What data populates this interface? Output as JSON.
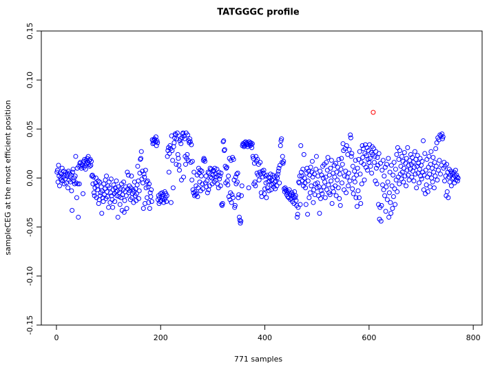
{
  "chart_data": {
    "type": "scatter",
    "title": "TATGGGC profile",
    "x_label": "771 samples",
    "y_label": "sampleCEG at the most efficient position",
    "xlim": [
      -29,
      817
    ],
    "xticks": [
      0,
      200,
      400,
      600,
      800
    ],
    "ylim": [
      -0.15,
      0.15
    ],
    "yticks": [
      -0.15,
      {
        "value": -0.1,
        "label": "-0.10"
      },
      -0.05,
      {
        "value": 0,
        "label": "0.00"
      },
      0.05,
      {
        "value": 0.1,
        "label": "0.10"
      },
      0.15
    ],
    "series": [
      {
        "color": "#0000ff",
        "values": [
          0.006,
          0.008,
          -0.004,
          0.013,
          0.002,
          -0.008,
          0.005,
          0.0,
          -0.002,
          0.004,
          0.01,
          -0.003,
          0.001,
          0.007,
          -0.006,
          0.003,
          -0.001,
          0.006,
          -0.005,
          0.002,
          0.004,
          -0.01,
          0.007,
          -0.002,
          0.005,
          0.001,
          -0.004,
          0.003,
          -0.013,
          -0.033,
          0.006,
          0.009,
          -0.003,
          0.0,
          -0.006,
          0.002,
          0.022,
          -0.005,
          -0.02,
          0.01,
          -0.006,
          -0.04,
          0.012,
          -0.006,
          0.015,
          0.016,
          0.012,
          0.01,
          0.014,
          0.013,
          -0.016,
          0.017,
          0.011,
          0.019,
          0.013,
          0.009,
          0.018,
          0.015,
          0.02,
          0.016,
          0.022,
          0.014,
          0.018,
          0.012,
          0.019,
          0.013,
          0.017,
          0.002,
          0.003,
          -0.006,
          0.001,
          -0.015,
          -0.018,
          -0.01,
          -0.005,
          0.0,
          -0.02,
          -0.008,
          -0.012,
          -0.003,
          -0.026,
          -0.022,
          -0.004,
          -0.018,
          -0.015,
          -0.009,
          -0.036,
          -0.013,
          -0.02,
          -0.024,
          -0.006,
          -0.017,
          -0.011,
          -0.002,
          -0.021,
          0.002,
          -0.014,
          -0.019,
          -0.008,
          -0.03,
          -0.004,
          -0.01,
          -0.025,
          -0.015,
          -0.001,
          -0.018,
          -0.022,
          -0.03,
          -0.012,
          -0.007,
          -0.016,
          -0.024,
          -0.01,
          -0.014,
          -0.003,
          -0.018,
          -0.013,
          -0.04,
          -0.009,
          -0.019,
          -0.015,
          -0.027,
          -0.011,
          -0.02,
          -0.006,
          -0.033,
          -0.017,
          -0.012,
          -0.004,
          -0.035,
          -0.023,
          -0.014,
          -0.009,
          -0.018,
          -0.031,
          0.006,
          -0.011,
          0.003,
          -0.015,
          -0.008,
          -0.013,
          -0.022,
          -0.01,
          0.002,
          -0.02,
          -0.016,
          -0.012,
          -0.025,
          -0.014,
          -0.004,
          -0.018,
          -0.011,
          -0.023,
          -0.016,
          -0.007,
          0.012,
          -0.003,
          -0.021,
          -0.013,
          0.005,
          0.019,
          0.02,
          0.027,
          -0.001,
          0.007,
          -0.005,
          -0.031,
          0.004,
          0.001,
          -0.026,
          0.008,
          -0.01,
          -0.004,
          -0.02,
          -0.003,
          -0.009,
          -0.025,
          -0.006,
          -0.031,
          -0.015,
          -0.019,
          -0.012,
          -0.024,
          0.039,
          0.035,
          0.038,
          0.036,
          0.04,
          0.039,
          0.037,
          0.042,
          0.033,
          0.038,
          0.036,
          -0.022,
          -0.018,
          -0.026,
          -0.02,
          -0.024,
          -0.016,
          -0.023,
          -0.019,
          -0.015,
          -0.021,
          -0.017,
          -0.025,
          -0.022,
          -0.014,
          -0.02,
          -0.016,
          -0.024,
          -0.018,
          0.022,
          0.028,
          0.031,
          0.006,
          0.025,
          0.033,
          0.03,
          -0.025,
          0.043,
          0.028,
          0.018,
          -0.01,
          0.032,
          0.036,
          0.041,
          0.045,
          0.044,
          0.014,
          0.04,
          0.046,
          0.024,
          0.02,
          0.013,
          0.008,
          0.038,
          0.04,
          0.035,
          -0.002,
          0.041,
          0.045,
          0.046,
          0.001,
          0.043,
          0.04,
          0.022,
          0.014,
          0.046,
          0.02,
          0.024,
          0.044,
          0.018,
          0.038,
          0.036,
          0.04,
          0.037,
          0.016,
          0.034,
          -0.002,
          0.017,
          -0.012,
          -0.015,
          0.006,
          -0.018,
          -0.014,
          -0.017,
          -0.008,
          -0.016,
          0.003,
          -0.019,
          -0.01,
          0.01,
          0.005,
          -0.004,
          0.008,
          -0.013,
          0.002,
          0.007,
          -0.006,
          -0.011,
          0.018,
          0.02,
          0.019,
          0.017,
          -0.005,
          0.002,
          -0.009,
          -0.003,
          -0.015,
          0.006,
          -0.012,
          0.005,
          -0.008,
          0.01,
          0.001,
          0.009,
          0.0,
          -0.006,
          0.003,
          0.008,
          0.007,
          -0.004,
          0.01,
          0.004,
          -0.002,
          0.001,
          0.009,
          -0.006,
          0.003,
          -0.01,
          0.006,
          -0.001,
          0.002,
          -0.008,
          0.005,
          -0.027,
          -0.028,
          -0.026,
          0.037,
          0.038,
          0.028,
          0.029,
          0.012,
          -0.005,
          0.01,
          0.011,
          -0.003,
          -0.007,
          0.002,
          -0.019,
          0.02,
          -0.022,
          -0.015,
          0.018,
          -0.025,
          -0.017,
          0.021,
          -0.02,
          0.019,
          -0.002,
          -0.03,
          -0.028,
          0.001,
          -0.006,
          0.004,
          -0.004,
          0.005,
          -0.02,
          -0.017,
          -0.04,
          -0.043,
          -0.046,
          -0.044,
          -0.018,
          -0.008,
          0.033,
          0.035,
          0.034,
          0.032,
          0.036,
          0.033,
          0.037,
          0.035,
          0.034,
          0.036,
          0.032,
          0.034,
          -0.01,
          0.037,
          0.035,
          0.033,
          0.036,
          0.034,
          0.031,
          0.035,
          0.022,
          0.02,
          -0.006,
          0.015,
          -0.004,
          -0.008,
          0.022,
          0.017,
          0.005,
          0.019,
          0.003,
          0.014,
          -0.002,
          0.006,
          0.016,
          0.004,
          -0.015,
          -0.019,
          0.007,
          0.001,
          0.005,
          0.008,
          -0.016,
          -0.011,
          0.002,
          -0.005,
          -0.02,
          0.003,
          -0.01,
          -0.004,
          0.001,
          -0.013,
          -0.003,
          0.0,
          0.004,
          -0.012,
          -0.007,
          -0.002,
          0.003,
          -0.006,
          -0.009,
          0.001,
          -0.004,
          -0.011,
          -0.003,
          0.002,
          -0.008,
          0.0,
          0.004,
          0.007,
          0.01,
          -0.005,
          0.013,
          0.033,
          0.038,
          0.04,
          0.016,
          0.022,
          0.015,
          0.017,
          -0.011,
          -0.014,
          -0.01,
          -0.012,
          -0.013,
          -0.017,
          -0.015,
          -0.019,
          -0.014,
          -0.02,
          -0.012,
          -0.016,
          -0.022,
          -0.018,
          -0.021,
          -0.015,
          -0.024,
          -0.017,
          -0.019,
          -0.026,
          -0.014,
          -0.02,
          -0.018,
          -0.023,
          -0.028,
          -0.04,
          -0.037,
          -0.03,
          -0.004,
          -0.005,
          0.002,
          -0.027,
          0.033,
          0.006,
          0.002,
          -0.003,
          0.009,
          -0.008,
          0.024,
          0.0,
          -0.005,
          -0.01,
          -0.027,
          0.005,
          0.01,
          -0.037,
          -0.003,
          0.007,
          -0.02,
          0.003,
          -0.015,
          0.011,
          -0.008,
          0.006,
          0.017,
          0.001,
          -0.025,
          -0.012,
          0.004,
          -0.017,
          -0.006,
          0.009,
          0.022,
          -0.01,
          -0.005,
          0.002,
          -0.018,
          -0.009,
          -0.036,
          0.007,
          -0.021,
          -0.013,
          0.003,
          -0.016,
          0.012,
          0.0,
          -0.009,
          0.014,
          -0.004,
          -0.02,
          0.001,
          0.016,
          -0.012,
          0.008,
          0.021,
          -0.007,
          -0.015,
          0.003,
          -0.017,
          0.01,
          -0.003,
          0.018,
          -0.026,
          -0.01,
          0.005,
          -0.014,
          0.013,
          0.001,
          -0.008,
          0.015,
          -0.018,
          0.006,
          -0.002,
          0.011,
          -0.01,
          0.019,
          -0.021,
          0.004,
          -0.028,
          0.009,
          0.02,
          -0.005,
          0.014,
          0.035,
          0.028,
          -0.012,
          0.002,
          0.03,
          0.007,
          -0.015,
          0.033,
          0.001,
          0.024,
          -0.008,
          0.005,
          0.029,
          -0.003,
          0.044,
          0.041,
          0.022,
          0.025,
          -0.011,
          0.012,
          -0.016,
          0.0,
          0.007,
          -0.004,
          0.018,
          -0.02,
          0.003,
          -0.029,
          0.01,
          -0.013,
          0.019,
          -0.02,
          0.027,
          0.004,
          -0.026,
          0.016,
          -0.006,
          0.033,
          0.021,
          0.03,
          0.014,
          -0.002,
          0.025,
          0.034,
          0.011,
          0.023,
          0.031,
          0.008,
          0.019,
          0.028,
          0.016,
          0.034,
          0.02,
          0.012,
          0.026,
          0.005,
          0.032,
          0.024,
          null,
          0.03,
          0.016,
          0.022,
          -0.003,
          0.027,
          0.01,
          -0.006,
          0.021,
          0.013,
          -0.027,
          0.025,
          -0.042,
          -0.03,
          0.015,
          -0.044,
          -0.028,
          0.008,
          -0.007,
          0.018,
          -0.012,
          0.002,
          -0.018,
          0.011,
          -0.034,
          -0.009,
          0.014,
          -0.022,
          -0.004,
          0.02,
          -0.04,
          -0.015,
          0.006,
          -0.025,
          -0.036,
          0.013,
          -0.008,
          -0.031,
          0.003,
          -0.019,
          0.016,
          -0.011,
          -0.027,
          0.009,
          -0.002,
          0.024,
          -0.014,
          0.031,
          0.001,
          0.019,
          -0.006,
          0.028,
          0.004,
          0.012,
          -0.001,
          0.022,
          0.006,
          0.017,
          -0.004,
          0.01,
          0.026,
          0.002,
          0.015,
          -0.008,
          0.02,
          0.008,
          0.031,
          0.003,
          0.013,
          -0.002,
          0.018,
          0.009,
          0.024,
          0.014,
          0.001,
          0.021,
          0.007,
          0.016,
          -0.003,
          0.011,
          0.027,
          0.004,
          0.019,
          -0.01,
          0.012,
          0.023,
          0.005,
          0.015,
          -0.005,
          0.009,
          0.02,
          0.002,
          0.013,
          -0.001,
          0.017,
          0.006,
          0.038,
          -0.012,
          0.003,
          0.025,
          -0.016,
          0.008,
          -0.007,
          0.019,
          0.001,
          -0.014,
          0.011,
          0.022,
          0.004,
          -0.009,
          0.014,
          0.027,
          0.0,
          0.01,
          -0.004,
          0.021,
          0.006,
          -0.01,
          0.016,
          0.002,
          0.03,
          0.012,
          0.036,
          -0.002,
          0.041,
          0.008,
          0.039,
          0.018,
          0.044,
          0.004,
          0.043,
          0.013,
          0.045,
          0.04,
          0.042,
          0.01,
          0.016,
          -0.003,
          0.012,
          0.002,
          -0.018,
          0.014,
          -0.014,
          0.006,
          -0.02,
          0.001,
          0.009,
          -0.004,
          0.003,
          0.007,
          -0.008,
          0.005,
          -0.001,
          0.004,
          0.0,
          0.006,
          -0.005,
          0.002,
          0.008,
          -0.002,
          0.003,
          0.001,
          -0.003,
          0.0
        ]
      },
      {
        "color": "#ff0000",
        "x": [
          608
        ],
        "values": [
          0.067
        ]
      }
    ]
  }
}
